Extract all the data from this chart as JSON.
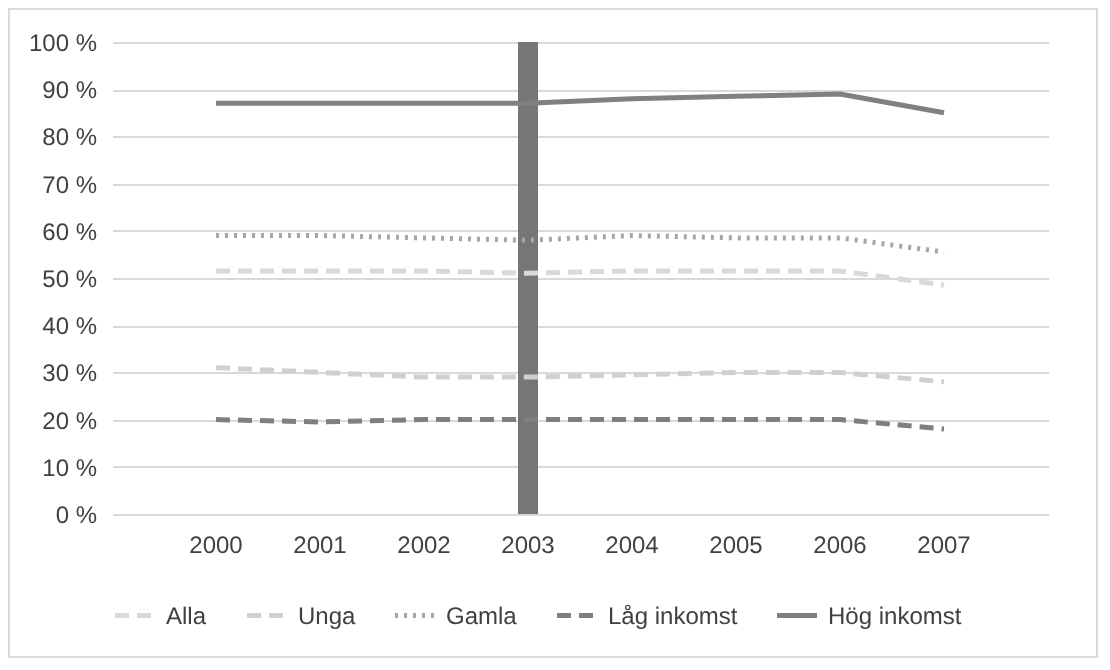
{
  "chart_data": {
    "type": "line",
    "categories": [
      "2000",
      "2001",
      "2002",
      "2003",
      "2004",
      "2005",
      "2006",
      "2007"
    ],
    "series": [
      {
        "name": "Alla",
        "color": "#d9d9d9",
        "line_style": "dashed",
        "values": [
          51.5,
          51.5,
          51.5,
          51,
          51.5,
          51.5,
          51.5,
          48.5
        ]
      },
      {
        "name": "Unga",
        "color": "#d0d0d0",
        "line_style": "dashed",
        "values": [
          31,
          30,
          29,
          29,
          29.5,
          30,
          30,
          28
        ]
      },
      {
        "name": "Gamla",
        "color": "#a6a6a6",
        "line_style": "dotted",
        "values": [
          59,
          59,
          58.5,
          58,
          59,
          58.5,
          58.5,
          55.5
        ]
      },
      {
        "name": "Låg inkomst",
        "color": "#7f7f7f",
        "line_style": "dashed",
        "values": [
          20,
          19.5,
          20,
          20,
          20,
          20,
          20,
          18
        ]
      },
      {
        "name": "Hög inkomst",
        "color": "#808080",
        "line_style": "solid",
        "values": [
          87,
          87,
          87,
          87,
          88,
          88.5,
          89,
          85
        ]
      }
    ],
    "ylim": [
      0,
      100
    ],
    "yticks": [
      {
        "value": 0,
        "label": "0 %"
      },
      {
        "value": 10,
        "label": "10 %"
      },
      {
        "value": 20,
        "label": "20 %"
      },
      {
        "value": 30,
        "label": "30 %"
      },
      {
        "value": 40,
        "label": "40 %"
      },
      {
        "value": 50,
        "label": "50 %"
      },
      {
        "value": 60,
        "label": "60 %"
      },
      {
        "value": 70,
        "label": "70 %"
      },
      {
        "value": 80,
        "label": "80 %"
      },
      {
        "value": 90,
        "label": "90 %"
      },
      {
        "value": 100,
        "label": "100 %"
      }
    ],
    "ref_lines": [
      {
        "axis": "x",
        "value": "2003",
        "color": "#767676"
      }
    ],
    "grid": "y",
    "legend": "bottom",
    "marker": "none"
  }
}
